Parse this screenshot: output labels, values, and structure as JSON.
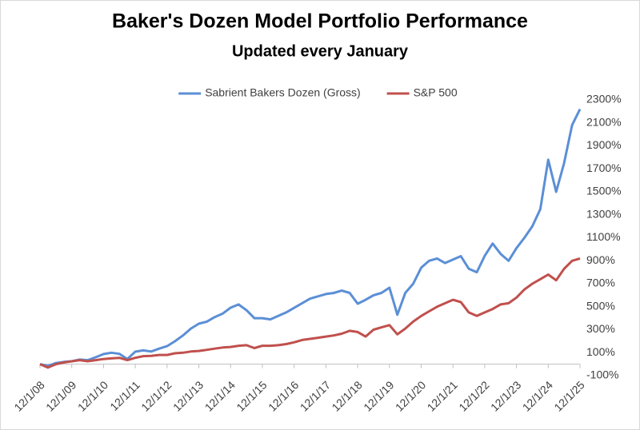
{
  "chart_data": {
    "type": "line",
    "title": "Baker's Dozen Model Portfolio Performance",
    "subtitle": "Updated every January",
    "categories": [
      "12/1/08",
      null,
      null,
      null,
      "12/1/09",
      null,
      null,
      null,
      "12/1/10",
      null,
      null,
      null,
      "12/1/11",
      null,
      null,
      null,
      "12/1/12",
      null,
      null,
      null,
      "12/1/13",
      null,
      null,
      null,
      "12/1/14",
      null,
      null,
      null,
      "12/1/15",
      null,
      null,
      null,
      "12/1/16",
      null,
      null,
      null,
      "12/1/17",
      null,
      null,
      null,
      "12/1/18",
      null,
      null,
      null,
      "12/1/19",
      null,
      null,
      null,
      "12/1/20",
      null,
      null,
      null,
      "12/1/21",
      null,
      null,
      null,
      "12/1/22",
      null,
      null,
      null,
      "12/1/23",
      null,
      null,
      null,
      "12/1/24",
      null,
      null,
      null,
      "12/1/25"
    ],
    "series": [
      {
        "name": "Sabrient Bakers Dozen (Gross)",
        "color": "#5b8fd6",
        "values": [
          0,
          -15,
          10,
          20,
          25,
          40,
          35,
          60,
          88,
          100,
          90,
          45,
          109,
          120,
          110,
          135,
          157,
          200,
          250,
          310,
          352,
          370,
          410,
          440,
          491,
          520,
          470,
          400,
          400,
          390,
          420,
          450,
          490,
          530,
          570,
          590,
          610,
          620,
          640,
          620,
          526,
          560,
          600,
          620,
          665,
          430,
          620,
          700,
          840,
          900,
          920,
          880,
          910,
          940,
          830,
          800,
          943,
          1050,
          960,
          900,
          1010,
          1100,
          1200,
          1350,
          1780,
          1500,
          1750,
          2080,
          2220
        ]
      },
      {
        "name": "S&P 500",
        "color": "#c0504d",
        "values": [
          0,
          -30,
          0,
          15,
          25,
          35,
          25,
          35,
          45,
          50,
          55,
          35,
          55,
          70,
          72,
          80,
          80,
          95,
          100,
          110,
          115,
          125,
          135,
          145,
          150,
          160,
          165,
          140,
          160,
          160,
          165,
          175,
          190,
          210,
          220,
          230,
          240,
          250,
          265,
          290,
          280,
          240,
          300,
          320,
          340,
          260,
          310,
          370,
          420,
          460,
          500,
          530,
          560,
          540,
          450,
          420,
          450,
          480,
          520,
          530,
          580,
          650,
          700,
          740,
          780,
          730,
          830,
          900,
          920
        ]
      }
    ],
    "ylim": [
      -100,
      2300
    ],
    "yticks": [
      {
        "value": -100,
        "label": "-100%"
      },
      {
        "value": 100,
        "label": "100%"
      },
      {
        "value": 300,
        "label": "300%"
      },
      {
        "value": 500,
        "label": "500%"
      },
      {
        "value": 700,
        "label": "700%"
      },
      {
        "value": 900,
        "label": "900%"
      },
      {
        "value": 1100,
        "label": "1100%"
      },
      {
        "value": 1300,
        "label": "1300%"
      },
      {
        "value": 1500,
        "label": "1500%"
      },
      {
        "value": 1700,
        "label": "1700%"
      },
      {
        "value": 1900,
        "label": "1900%"
      },
      {
        "value": 2100,
        "label": "2100%"
      },
      {
        "value": 2300,
        "label": "2300%"
      }
    ],
    "y_axis_side": "right",
    "grid": false,
    "legend": "top"
  }
}
